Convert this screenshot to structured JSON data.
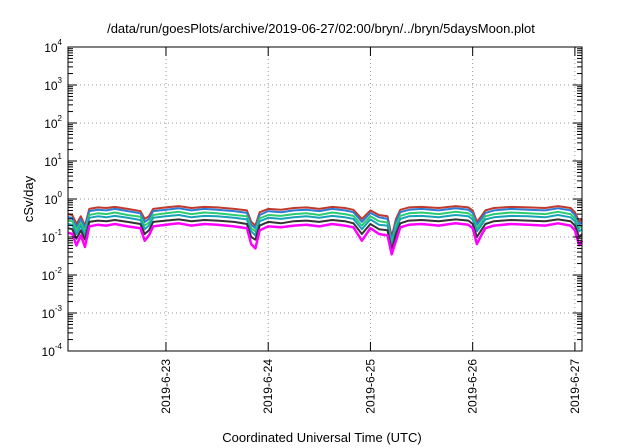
{
  "chart_data": {
    "type": "line",
    "title": "/data/run/goesPlots/archive/2019-06-27/02:00/bryn/../bryn/5daysMoon.plot",
    "xlabel": "Coordinated Universal Time (UTC)",
    "ylabel": "cSv/day",
    "yscale": "log",
    "ylim": [
      0.0001,
      10000
    ],
    "xlim": [
      "2019-06-22T01:00",
      "2019-06-27T01:40"
    ],
    "y_ticks": [
      {
        "base": "10",
        "exp": "-4",
        "value": 0.0001
      },
      {
        "base": "10",
        "exp": "-3",
        "value": 0.001
      },
      {
        "base": "10",
        "exp": "-2",
        "value": 0.01
      },
      {
        "base": "10",
        "exp": "-1",
        "value": 0.1
      },
      {
        "base": "10",
        "exp": "0",
        "value": 1
      },
      {
        "base": "10",
        "exp": "1",
        "value": 10
      },
      {
        "base": "10",
        "exp": "2",
        "value": 100
      },
      {
        "base": "10",
        "exp": "3",
        "value": 1000
      },
      {
        "base": "10",
        "exp": "4",
        "value": 10000
      }
    ],
    "x_ticks": [
      {
        "label": "2019-6-23",
        "value": "2019-06-23T00:00"
      },
      {
        "label": "2019-6-24",
        "value": "2019-06-24T00:00"
      },
      {
        "label": "2019-6-25",
        "value": "2019-06-25T00:00"
      },
      {
        "label": "2019-6-26",
        "value": "2019-06-26T00:00"
      },
      {
        "label": "2019-6-27",
        "value": "2019-06-27T00:00"
      }
    ],
    "grid": true,
    "legend": "none",
    "x": [
      "2019-06-22T01:00",
      "2019-06-22T02:00",
      "2019-06-22T03:00",
      "2019-06-22T04:00",
      "2019-06-22T05:00",
      "2019-06-22T06:00",
      "2019-06-22T08:00",
      "2019-06-22T10:00",
      "2019-06-22T12:00",
      "2019-06-22T15:00",
      "2019-06-22T18:00",
      "2019-06-22T19:00",
      "2019-06-22T20:00",
      "2019-06-22T21:00",
      "2019-06-23T00:00",
      "2019-06-23T03:00",
      "2019-06-23T06:00",
      "2019-06-23T09:00",
      "2019-06-23T12:00",
      "2019-06-23T16:00",
      "2019-06-23T19:00",
      "2019-06-23T20:00",
      "2019-06-23T21:00",
      "2019-06-23T22:00",
      "2019-06-24T00:00",
      "2019-06-24T03:00",
      "2019-06-24T06:00",
      "2019-06-24T09:00",
      "2019-06-24T12:00",
      "2019-06-24T15:00",
      "2019-06-24T18:00",
      "2019-06-24T20:00",
      "2019-06-24T22:00",
      "2019-06-25T00:00",
      "2019-06-25T02:00",
      "2019-06-25T04:00",
      "2019-06-25T05:00",
      "2019-06-25T06:00",
      "2019-06-25T07:00",
      "2019-06-25T09:00",
      "2019-06-25T12:00",
      "2019-06-25T16:00",
      "2019-06-25T20:00",
      "2019-06-25T23:00",
      "2019-06-26T00:00",
      "2019-06-26T01:00",
      "2019-06-26T02:00",
      "2019-06-26T03:00",
      "2019-06-26T05:00",
      "2019-06-26T09:00",
      "2019-06-26T13:00",
      "2019-06-26T17:00",
      "2019-06-26T20:00",
      "2019-06-26T23:00",
      "2019-06-27T00:00",
      "2019-06-27T01:00",
      "2019-06-27T01:40"
    ],
    "series": [
      {
        "color": "#c0392b",
        "values": [
          0.4,
          0.38,
          0.22,
          0.35,
          0.2,
          0.55,
          0.6,
          0.58,
          0.62,
          0.55,
          0.48,
          0.3,
          0.35,
          0.55,
          0.6,
          0.65,
          0.58,
          0.62,
          0.6,
          0.55,
          0.5,
          0.25,
          0.2,
          0.45,
          0.55,
          0.52,
          0.58,
          0.6,
          0.55,
          0.62,
          0.58,
          0.52,
          0.3,
          0.5,
          0.38,
          0.35,
          0.1,
          0.3,
          0.52,
          0.6,
          0.62,
          0.58,
          0.65,
          0.6,
          0.5,
          0.25,
          0.35,
          0.5,
          0.58,
          0.62,
          0.6,
          0.58,
          0.65,
          0.58,
          0.45,
          0.25,
          0.3
        ]
      },
      {
        "color": "#2e7bd6",
        "values": [
          0.33,
          0.32,
          0.18,
          0.3,
          0.17,
          0.48,
          0.52,
          0.5,
          0.55,
          0.48,
          0.42,
          0.25,
          0.3,
          0.48,
          0.52,
          0.57,
          0.5,
          0.55,
          0.52,
          0.48,
          0.43,
          0.21,
          0.17,
          0.38,
          0.48,
          0.45,
          0.5,
          0.52,
          0.48,
          0.55,
          0.5,
          0.45,
          0.25,
          0.43,
          0.33,
          0.3,
          0.08,
          0.25,
          0.45,
          0.52,
          0.55,
          0.5,
          0.57,
          0.52,
          0.43,
          0.21,
          0.3,
          0.43,
          0.5,
          0.55,
          0.52,
          0.5,
          0.57,
          0.5,
          0.38,
          0.21,
          0.25
        ]
      },
      {
        "color": "#2ecc71",
        "values": [
          0.27,
          0.26,
          0.15,
          0.24,
          0.14,
          0.38,
          0.42,
          0.4,
          0.44,
          0.38,
          0.34,
          0.2,
          0.24,
          0.38,
          0.42,
          0.46,
          0.4,
          0.44,
          0.42,
          0.38,
          0.35,
          0.17,
          0.14,
          0.31,
          0.38,
          0.36,
          0.4,
          0.42,
          0.38,
          0.44,
          0.4,
          0.36,
          0.2,
          0.35,
          0.26,
          0.24,
          0.065,
          0.2,
          0.36,
          0.42,
          0.44,
          0.4,
          0.46,
          0.42,
          0.35,
          0.17,
          0.24,
          0.35,
          0.4,
          0.44,
          0.42,
          0.4,
          0.46,
          0.4,
          0.31,
          0.17,
          0.2
        ]
      },
      {
        "color": "#17a2b8",
        "values": [
          0.22,
          0.21,
          0.12,
          0.2,
          0.11,
          0.32,
          0.35,
          0.33,
          0.36,
          0.32,
          0.28,
          0.16,
          0.2,
          0.32,
          0.35,
          0.38,
          0.33,
          0.36,
          0.35,
          0.32,
          0.29,
          0.14,
          0.11,
          0.26,
          0.32,
          0.3,
          0.33,
          0.35,
          0.32,
          0.36,
          0.33,
          0.3,
          0.16,
          0.29,
          0.21,
          0.2,
          0.055,
          0.16,
          0.3,
          0.35,
          0.36,
          0.33,
          0.38,
          0.35,
          0.29,
          0.14,
          0.2,
          0.29,
          0.33,
          0.36,
          0.35,
          0.33,
          0.38,
          0.33,
          0.26,
          0.14,
          0.16
        ]
      },
      {
        "color": "#333333",
        "values": [
          0.17,
          0.16,
          0.09,
          0.15,
          0.085,
          0.25,
          0.27,
          0.26,
          0.28,
          0.25,
          0.22,
          0.12,
          0.15,
          0.25,
          0.27,
          0.29,
          0.26,
          0.28,
          0.27,
          0.25,
          0.22,
          0.1,
          0.085,
          0.2,
          0.25,
          0.23,
          0.26,
          0.27,
          0.25,
          0.28,
          0.26,
          0.23,
          0.12,
          0.22,
          0.16,
          0.15,
          0.045,
          0.12,
          0.23,
          0.27,
          0.28,
          0.26,
          0.29,
          0.27,
          0.22,
          0.1,
          0.15,
          0.22,
          0.26,
          0.28,
          0.27,
          0.26,
          0.29,
          0.26,
          0.2,
          0.1,
          0.12
        ]
      },
      {
        "color": "#ff00ff",
        "values": [
          0.13,
          0.12,
          0.06,
          0.11,
          0.055,
          0.19,
          0.21,
          0.2,
          0.22,
          0.19,
          0.17,
          0.08,
          0.11,
          0.19,
          0.21,
          0.23,
          0.2,
          0.22,
          0.21,
          0.19,
          0.17,
          0.065,
          0.05,
          0.15,
          0.19,
          0.18,
          0.2,
          0.21,
          0.19,
          0.22,
          0.2,
          0.18,
          0.08,
          0.17,
          0.12,
          0.11,
          0.035,
          0.08,
          0.18,
          0.21,
          0.22,
          0.2,
          0.23,
          0.21,
          0.17,
          0.065,
          0.11,
          0.17,
          0.2,
          0.22,
          0.21,
          0.2,
          0.23,
          0.2,
          0.15,
          0.06,
          0.08
        ]
      }
    ]
  }
}
